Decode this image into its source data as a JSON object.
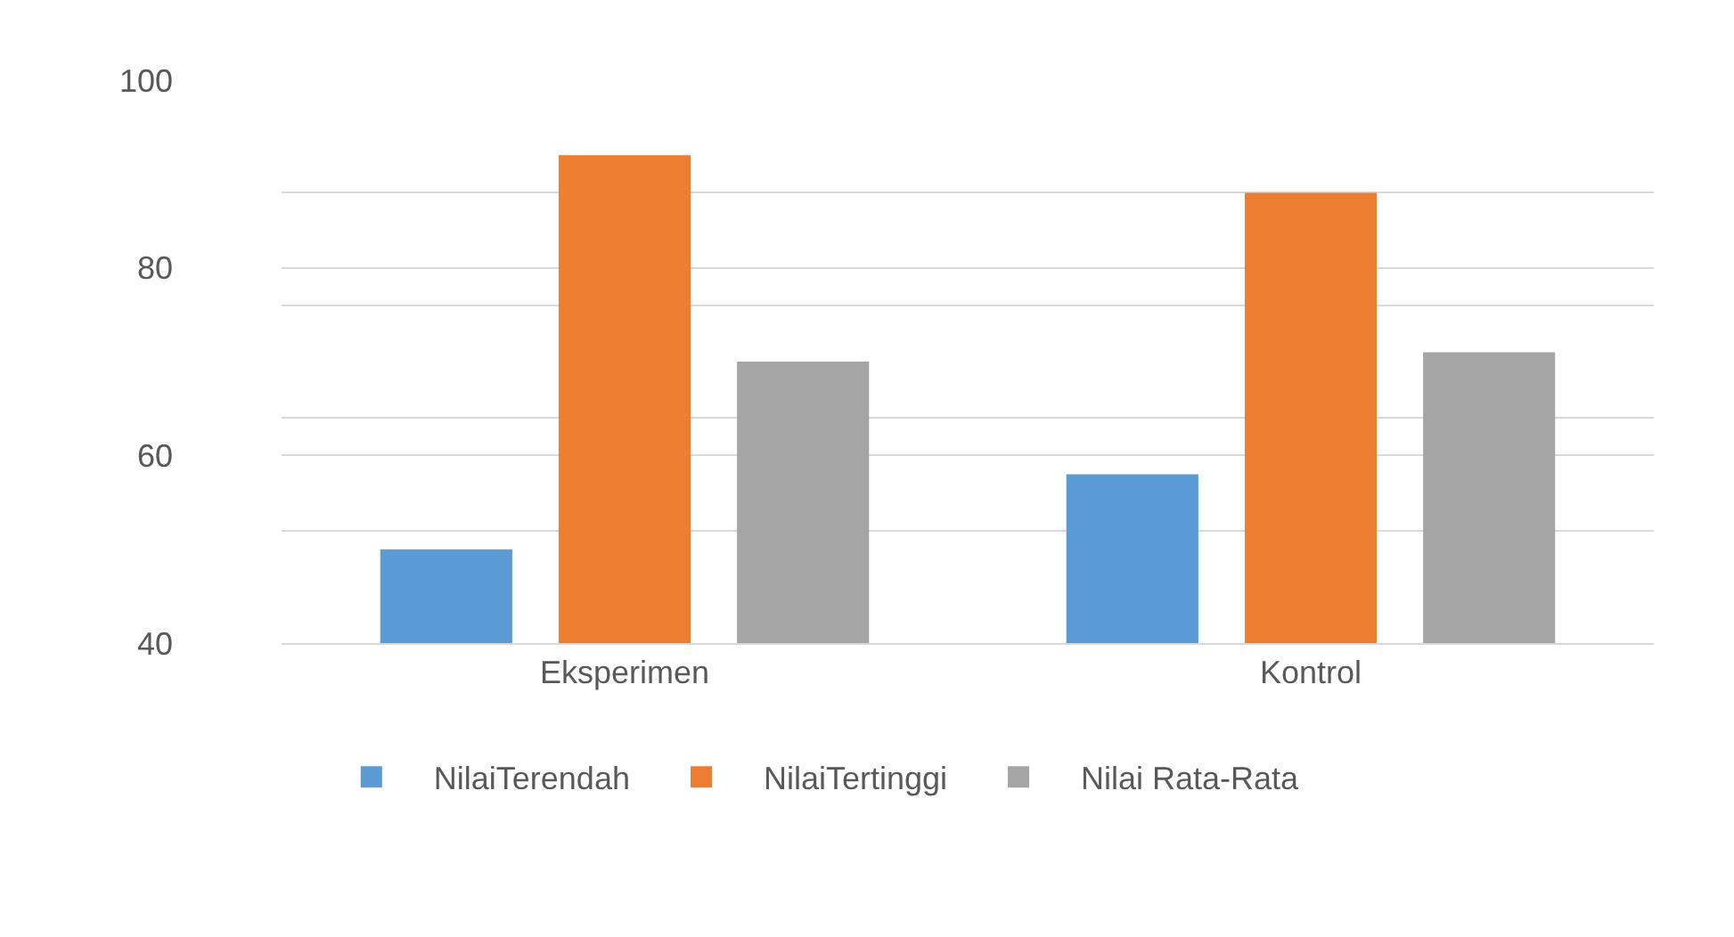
{
  "chart_data": {
    "type": "bar",
    "categories": [
      "Eksperimen",
      "Kontrol"
    ],
    "series": [
      {
        "name": "NilaiTerendah",
        "color": "#5b9bd5",
        "values": [
          50,
          58
        ]
      },
      {
        "name": "NilaiTertinggi",
        "color": "#ed7d31",
        "values": [
          92,
          88
        ]
      },
      {
        "name": "Nilai Rata-Rata",
        "color": "#a5a5a5",
        "values": [
          70,
          71
        ]
      }
    ],
    "ylim": [
      40,
      100
    ],
    "yticks": [
      40,
      {
        "value": 52,
        "label": null
      },
      60,
      {
        "value": 64,
        "label": null
      },
      {
        "value": 76,
        "label": null
      },
      80,
      {
        "value": 88,
        "label": null
      },
      100
    ],
    "grid": "y",
    "legend": "bottom left"
  }
}
